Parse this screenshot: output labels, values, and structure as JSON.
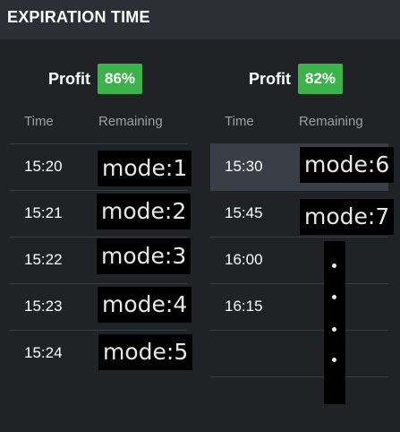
{
  "header": {
    "title": "EXPIRATION TIME"
  },
  "columns": [
    {
      "profit_label": "Profit",
      "profit_value": "86%",
      "time_header": "Time",
      "remaining_header": "Remaining",
      "rows": [
        {
          "time": "15:20",
          "mode": "mode:1"
        },
        {
          "time": "15:21",
          "mode": "mode:2"
        },
        {
          "time": "15:22",
          "mode": "mode:3"
        },
        {
          "time": "15:23",
          "mode": "mode:4"
        },
        {
          "time": "15:24",
          "mode": "mode:5"
        }
      ]
    },
    {
      "profit_label": "Profit",
      "profit_value": "82%",
      "time_header": "Time",
      "remaining_header": "Remaining",
      "rows": [
        {
          "time": "15:30",
          "mode": "mode:6",
          "selected": true
        },
        {
          "time": "15:45",
          "mode": "mode:7"
        },
        {
          "time": "16:00",
          "mode": ""
        },
        {
          "time": "16:15",
          "mode": ""
        },
        {
          "time": "",
          "mode": ""
        }
      ]
    }
  ],
  "colors": {
    "background": "#202226",
    "header_bg": "#2c2f35",
    "profit_badge": "#3cb34a",
    "selected_row": "#3a3e46"
  }
}
